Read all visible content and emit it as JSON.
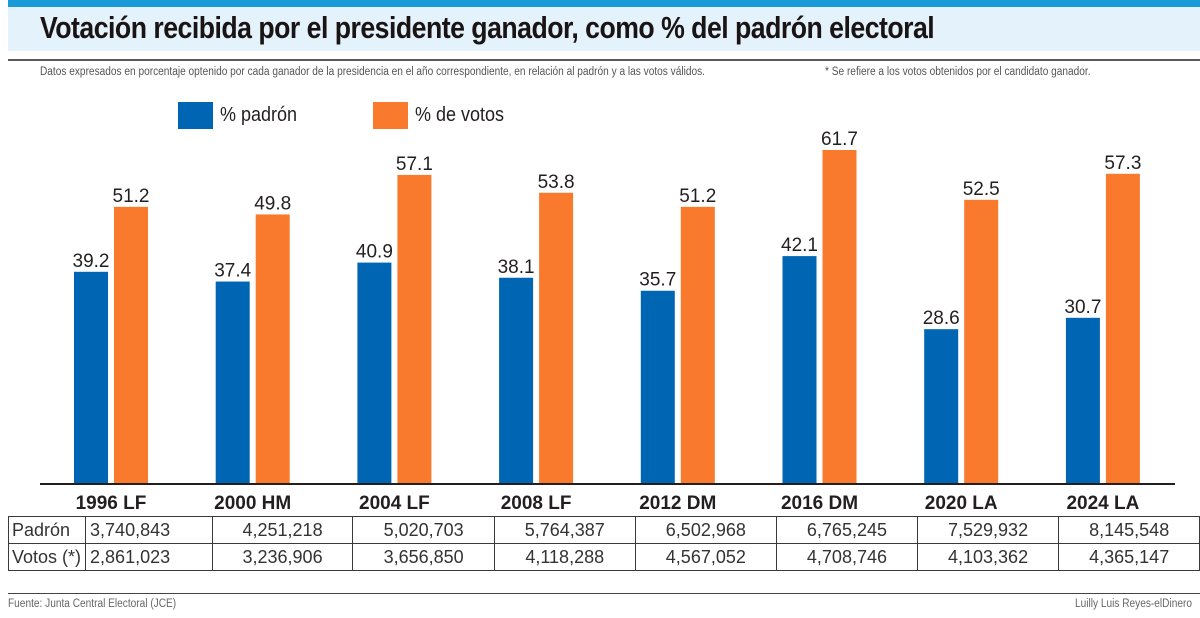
{
  "header": {
    "title": "Votación recibida por el presidente ganador, como % del padrón electoral",
    "subtitle": "Datos expresados en porcentaje optenido por cada ganador de la presidencia en el año correspondiente, en relación al padrón y a las votos válidos.",
    "note": "* Se refiere a los votos obtenidos por el candidato ganador."
  },
  "colors": {
    "padron": "#0066b3",
    "votos": "#f97a2d",
    "topbar": "#1a9ad9",
    "titleband": "#e3f2fb"
  },
  "chart_data": {
    "type": "bar",
    "title": "Votación recibida por el presidente ganador, como % del padrón electoral",
    "xlabel": "",
    "ylabel": "",
    "ylim": [
      0,
      62
    ],
    "grid": false,
    "legend_position": "top-left",
    "categories": [
      "1996 LF",
      "2000 HM",
      "2004 LF",
      "2008 LF",
      "2012 DM",
      "2016 DM",
      "2020 LA",
      "2024 LA"
    ],
    "series": [
      {
        "name": "% padrón",
        "values": [
          39.2,
          37.4,
          40.9,
          38.1,
          35.7,
          42.1,
          28.6,
          30.7
        ]
      },
      {
        "name": "% de votos",
        "values": [
          51.2,
          49.8,
          57.1,
          53.8,
          51.2,
          61.7,
          52.5,
          57.3
        ]
      }
    ],
    "data_labels": {
      "padron": [
        "39.2",
        "37.4",
        "40.9",
        "38.1",
        "35.7",
        "42.1",
        "28.6",
        "30.7"
      ],
      "votos": [
        "51.2",
        "49.8",
        "57.1",
        "53.8",
        "51.2",
        "61.7",
        "52.5",
        "57.3"
      ]
    }
  },
  "legend": [
    {
      "label": "% padrón"
    },
    {
      "label": "% de votos"
    }
  ],
  "table": {
    "rows": [
      {
        "label": "Padrón",
        "values": [
          "3,740,843",
          "4,251,218",
          "5,020,703",
          "5,764,387",
          "6,502,968",
          "6,765,245",
          "7,529,932",
          "8,145,548"
        ]
      },
      {
        "label": "Votos (*)",
        "values": [
          "2,861,023",
          "3,236,906",
          "3,656,850",
          "4,118,288",
          "4,567,052",
          "4,708,746",
          "4,103,362",
          "4,365,147"
        ]
      }
    ]
  },
  "footer": {
    "source": "Fuente: Junta Central Electoral (JCE)",
    "credit": "Luilly Luis Reyes-elDinero"
  }
}
